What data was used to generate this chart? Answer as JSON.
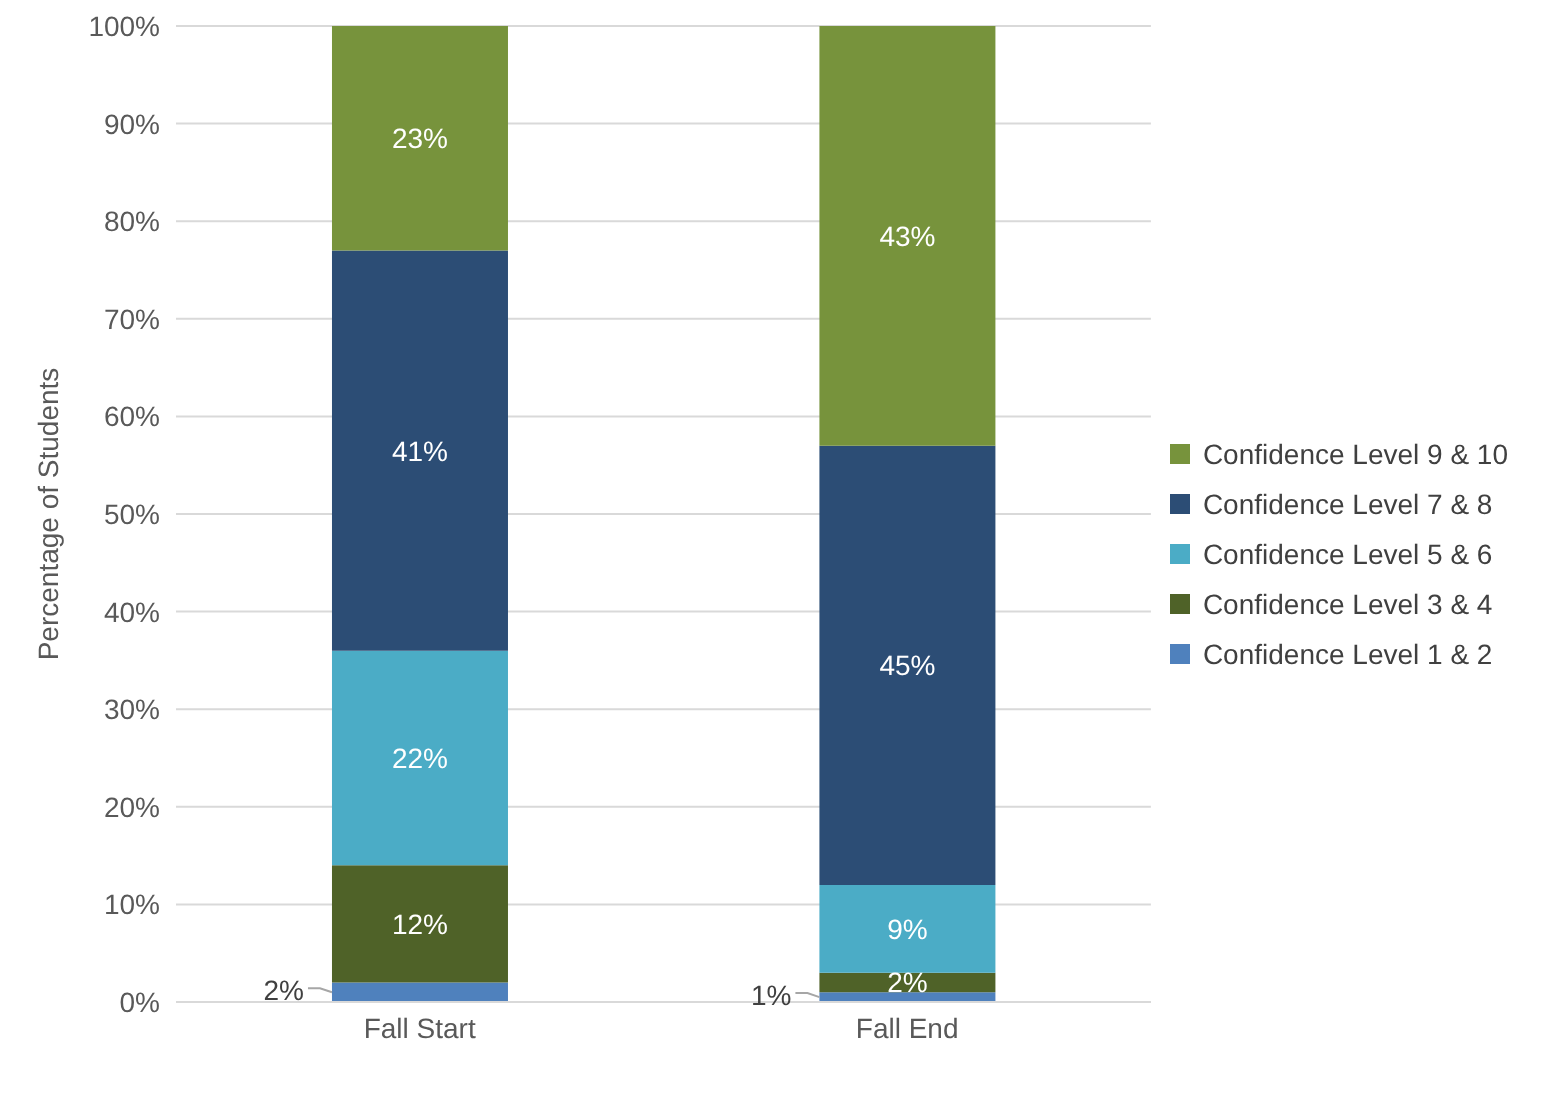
{
  "chart_data": {
    "type": "bar",
    "stacked": true,
    "ylabel": "Percentage of Students",
    "categories": [
      "Fall Start",
      "Fall End"
    ],
    "series": [
      {
        "name": "Confidence Level 1 & 2",
        "color": "#4f81bd",
        "values": [
          2,
          1
        ],
        "value_labels": [
          "2%",
          "1%"
        ]
      },
      {
        "name": "Confidence Level 3 & 4",
        "color": "#4f6228",
        "values": [
          12,
          2
        ],
        "value_labels": [
          "12%",
          "2%"
        ]
      },
      {
        "name": "Confidence Level 5 & 6",
        "color": "#4bacc6",
        "values": [
          22,
          9
        ],
        "value_labels": [
          "22%",
          "9%"
        ]
      },
      {
        "name": "Confidence Level 7 & 8",
        "color": "#2c4d75",
        "values": [
          41,
          45
        ],
        "value_labels": [
          "41%",
          "45%"
        ]
      },
      {
        "name": "Confidence Level 9 & 10",
        "color": "#77933c",
        "values": [
          23,
          43
        ],
        "value_labels": [
          "23%",
          "43%"
        ]
      }
    ],
    "ylim": [
      0,
      100
    ],
    "yticks": [
      {
        "value": 0,
        "label": "0%"
      },
      {
        "value": 10,
        "label": "10%"
      },
      {
        "value": 20,
        "label": "20%"
      },
      {
        "value": 30,
        "label": "30%"
      },
      {
        "value": 40,
        "label": "40%"
      },
      {
        "value": 50,
        "label": "50%"
      },
      {
        "value": 60,
        "label": "60%"
      },
      {
        "value": 70,
        "label": "70%"
      },
      {
        "value": 80,
        "label": "80%"
      },
      {
        "value": 90,
        "label": "90%"
      },
      {
        "value": 100,
        "label": "100%"
      }
    ],
    "grid": "y",
    "legend": "right"
  }
}
